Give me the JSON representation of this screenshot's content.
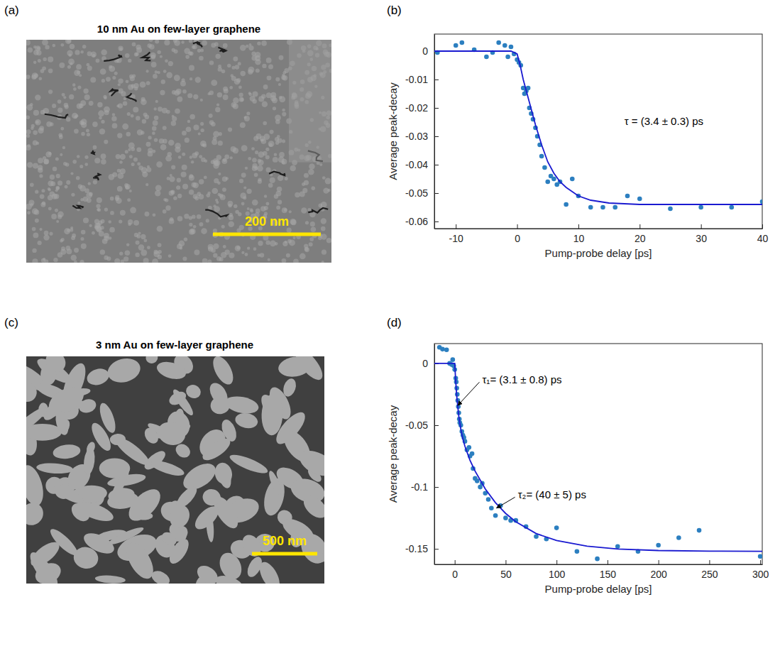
{
  "images": [
    {
      "label": "(a)",
      "title": "10 nm Au on few-layer graphene",
      "scale_bar": "200 nm"
    },
    {
      "label": "(c)",
      "title": "3 nm Au on few-layer graphene",
      "scale_bar": "500 nm"
    }
  ],
  "chart_data": [
    {
      "type": "scatter",
      "label": "(b)",
      "xlabel": "Pump-probe delay [ps]",
      "ylabel": "Average peak-decay",
      "xlim": [
        -13.5,
        40
      ],
      "xticks": [
        -10,
        0,
        10,
        20,
        30,
        40
      ],
      "ylim": [
        -0.0625,
        0.006
      ],
      "yticks": [
        -0.06,
        -0.05,
        -0.04,
        -0.03,
        -0.02,
        -0.01,
        0
      ],
      "series": [
        {
          "type": "scatter",
          "marker": "circle",
          "color": "#2c7fc0",
          "x": [
            -13,
            -10,
            -9,
            -7,
            -5,
            -4,
            -3,
            -2,
            -1.5,
            -1,
            -0.5,
            0,
            0.3,
            0.6,
            1,
            1.2,
            1.5,
            1.8,
            2,
            2.3,
            2.6,
            3,
            3.3,
            3.7,
            4,
            4.5,
            5,
            5.5,
            6,
            6.5,
            7,
            8,
            9,
            10,
            12,
            14,
            16,
            18,
            20,
            25,
            30,
            35,
            40
          ],
          "values": [
            -0.0005,
            0.002,
            0.003,
            0.0005,
            -0.002,
            -0.0005,
            0.003,
            0.002,
            -0.002,
            0.0015,
            -0.001,
            -0.003,
            -0.004,
            -0.005,
            -0.013,
            -0.015,
            -0.014,
            -0.013,
            -0.02,
            -0.022,
            -0.024,
            -0.027,
            -0.03,
            -0.033,
            -0.037,
            -0.041,
            -0.046,
            -0.044,
            -0.045,
            -0.047,
            -0.046,
            -0.054,
            -0.045,
            -0.051,
            -0.055,
            -0.055,
            -0.055,
            -0.051,
            -0.052,
            -0.0555,
            -0.055,
            -0.055,
            -0.053
          ]
        },
        {
          "type": "line",
          "line_style": "solid",
          "color": "#1a1ad0",
          "x": [
            -13.5,
            -1,
            0,
            0.5,
            1,
            1.5,
            2,
            2.5,
            3,
            4,
            5,
            6,
            7,
            8,
            10,
            12,
            15,
            20,
            30,
            40
          ],
          "values": [
            0,
            0,
            -0.001,
            -0.005,
            -0.01,
            -0.014,
            -0.018,
            -0.022,
            -0.026,
            -0.033,
            -0.039,
            -0.043,
            -0.046,
            -0.048,
            -0.051,
            -0.0525,
            -0.0535,
            -0.054,
            -0.054,
            -0.054
          ]
        }
      ],
      "annotations": [
        {
          "text": "τ = (3.4 ± 0.3) ps",
          "x": 17.5,
          "y": -0.025
        }
      ]
    },
    {
      "type": "scatter",
      "label": "(d)",
      "xlabel": "Pump-probe delay [ps]",
      "ylabel": "Average peak-decay",
      "xlim": [
        -20,
        302
      ],
      "xticks": [
        0,
        50,
        100,
        150,
        200,
        250,
        300
      ],
      "ylim": [
        -0.1625,
        0.016
      ],
      "yticks": [
        -0.15,
        -0.1,
        -0.05,
        0
      ],
      "series": [
        {
          "type": "scatter",
          "marker": "circle",
          "color": "#2c7fc0",
          "x": [
            -15,
            -12,
            -8,
            -5,
            -3,
            -2,
            -1,
            0,
            1,
            1.5,
            2,
            2.5,
            3,
            3.5,
            4,
            4.5,
            5,
            6,
            7,
            8,
            9,
            10,
            12,
            14,
            15,
            17,
            18,
            20,
            22,
            25,
            27,
            30,
            33,
            36,
            40,
            45,
            50,
            55,
            60,
            70,
            80,
            90,
            100,
            120,
            140,
            160,
            180,
            200,
            220,
            240,
            300
          ],
          "values": [
            0.013,
            0.0115,
            0.011,
            0,
            -0.001,
            0.003,
            -0.002,
            -0.005,
            -0.012,
            -0.015,
            -0.02,
            -0.025,
            -0.03,
            -0.035,
            -0.04,
            -0.045,
            -0.048,
            -0.05,
            -0.055,
            -0.058,
            -0.06,
            -0.063,
            -0.07,
            -0.068,
            -0.075,
            -0.073,
            -0.085,
            -0.093,
            -0.095,
            -0.1,
            -0.097,
            -0.105,
            -0.11,
            -0.117,
            -0.123,
            -0.115,
            -0.125,
            -0.127,
            -0.127,
            -0.132,
            -0.14,
            -0.142,
            -0.133,
            -0.152,
            -0.158,
            -0.148,
            -0.152,
            -0.147,
            -0.141,
            -0.135,
            -0.156
          ]
        },
        {
          "type": "line",
          "line_style": "solid",
          "color": "#1a1ad0",
          "x": [
            -20,
            0,
            1,
            2,
            4,
            6,
            8,
            10,
            15,
            20,
            30,
            40,
            50,
            60,
            80,
            100,
            130,
            160,
            200,
            250,
            302
          ],
          "values": [
            0,
            0,
            -0.015,
            -0.0266,
            -0.0428,
            -0.0534,
            -0.061,
            -0.0669,
            -0.0784,
            -0.0871,
            -0.1015,
            -0.1126,
            -0.1213,
            -0.1281,
            -0.1376,
            -0.1432,
            -0.1478,
            -0.1501,
            -0.1513,
            -0.1518,
            -0.152
          ]
        }
      ],
      "annotations": [
        {
          "text": "τ₁= (3.1 ± 0.8) ps",
          "x": 27,
          "y": -0.014,
          "arrow_x": 3,
          "arrow_y": -0.034
        },
        {
          "text": "τ₂= (40 ± 5) ps",
          "x": 62,
          "y": -0.107,
          "arrow_x": 41,
          "arrow_y": -0.117
        }
      ]
    }
  ]
}
